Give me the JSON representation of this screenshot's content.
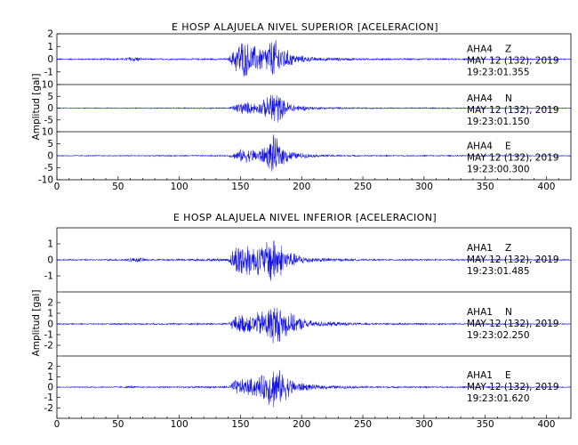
{
  "chart_data": [
    {
      "type": "line",
      "title": "E HOSP ALAJUELA NIVEL SUPERIOR [ACELERACION]",
      "ylabel": "Amplitud [gal]",
      "xlim": [
        0,
        420
      ],
      "xticks": [
        0,
        50,
        100,
        150,
        200,
        250,
        300,
        350,
        400
      ],
      "panels": [
        {
          "station": "AHA4",
          "component": "Z",
          "date": "MAY 12 (132), 2019",
          "time": "19:23:01.355",
          "ylim": [
            -2,
            2
          ],
          "yticks": [
            2,
            1,
            0,
            -1
          ],
          "envelope": [
            [
              0,
              0.05
            ],
            [
              55,
              0.08
            ],
            [
              60,
              0.25
            ],
            [
              65,
              0.25
            ],
            [
              70,
              0.06
            ],
            [
              140,
              0.08
            ],
            [
              145,
              0.9
            ],
            [
              150,
              1.8
            ],
            [
              160,
              1.2
            ],
            [
              170,
              1.1
            ],
            [
              177,
              1.9
            ],
            [
              185,
              1.0
            ],
            [
              195,
              0.4
            ],
            [
              210,
              0.18
            ],
            [
              250,
              0.08
            ],
            [
              420,
              0.05
            ]
          ]
        },
        {
          "station": "AHA4",
          "component": "N",
          "date": "MAY 12 (132), 2019",
          "time": "19:23:01.150",
          "ylim": [
            -10,
            10
          ],
          "yticks": [
            10,
            5,
            0,
            -5
          ],
          "envelope": [
            [
              0,
              0.2
            ],
            [
              140,
              0.3
            ],
            [
              145,
              1.5
            ],
            [
              150,
              3
            ],
            [
              165,
              2.5
            ],
            [
              172,
              5
            ],
            [
              177,
              10
            ],
            [
              185,
              4
            ],
            [
              195,
              1.5
            ],
            [
              210,
              0.6
            ],
            [
              250,
              0.3
            ],
            [
              420,
              0.2
            ]
          ]
        },
        {
          "station": "AHA4",
          "component": "E",
          "date": "MAY 12 (132), 2019",
          "time": "19:23:00.300",
          "ylim": [
            -10,
            10
          ],
          "yticks": [
            10,
            5,
            0,
            -5,
            -10
          ],
          "envelope": [
            [
              0,
              0.2
            ],
            [
              140,
              0.3
            ],
            [
              145,
              1.5
            ],
            [
              150,
              3
            ],
            [
              165,
              3
            ],
            [
              172,
              5
            ],
            [
              177,
              9.5
            ],
            [
              185,
              4
            ],
            [
              195,
              1.5
            ],
            [
              210,
              0.6
            ],
            [
              250,
              0.3
            ],
            [
              420,
              0.2
            ]
          ]
        }
      ]
    },
    {
      "type": "line",
      "title": "E HOSP ALAJUELA NIVEL INFERIOR [ACELERACION]",
      "ylabel": "Amplitud [gal]",
      "xlim": [
        0,
        420
      ],
      "xticks": [
        0,
        50,
        100,
        150,
        200,
        250,
        300,
        350,
        400
      ],
      "panels": [
        {
          "station": "AHA1",
          "component": "Z",
          "date": "MAY 12 (132), 2019",
          "time": "19:23:01.485",
          "ylim": [
            -2,
            2
          ],
          "yticks": [
            1,
            0,
            -1
          ],
          "envelope": [
            [
              0,
              0.04
            ],
            [
              55,
              0.06
            ],
            [
              60,
              0.15
            ],
            [
              70,
              0.15
            ],
            [
              75,
              0.05
            ],
            [
              140,
              0.1
            ],
            [
              145,
              0.9
            ],
            [
              150,
              1.4
            ],
            [
              160,
              1.0
            ],
            [
              170,
              1.1
            ],
            [
              176,
              1.9
            ],
            [
              185,
              0.9
            ],
            [
              195,
              0.4
            ],
            [
              210,
              0.15
            ],
            [
              250,
              0.06
            ],
            [
              420,
              0.04
            ]
          ]
        },
        {
          "station": "AHA1",
          "component": "N",
          "date": "MAY 12 (132), 2019",
          "time": "19:23:02.250",
          "ylim": [
            -3,
            3
          ],
          "yticks": [
            2,
            1,
            0,
            -1,
            -2
          ],
          "envelope": [
            [
              0,
              0.05
            ],
            [
              140,
              0.1
            ],
            [
              145,
              0.8
            ],
            [
              150,
              1.0
            ],
            [
              160,
              1.0
            ],
            [
              170,
              1.5
            ],
            [
              176,
              2.3
            ],
            [
              185,
              1.6
            ],
            [
              195,
              0.8
            ],
            [
              210,
              0.3
            ],
            [
              250,
              0.1
            ],
            [
              420,
              0.05
            ]
          ]
        },
        {
          "station": "AHA1",
          "component": "E",
          "date": "MAY 12 (132), 2019",
          "time": "19:23:01.620",
          "ylim": [
            -3,
            3
          ],
          "yticks": [
            2,
            1,
            0,
            -1,
            -2
          ],
          "envelope": [
            [
              0,
              0.05
            ],
            [
              55,
              0.07
            ],
            [
              60,
              0.15
            ],
            [
              65,
              0.07
            ],
            [
              140,
              0.1
            ],
            [
              145,
              0.8
            ],
            [
              155,
              0.9
            ],
            [
              165,
              1.1
            ],
            [
              172,
              1.6
            ],
            [
              176,
              2.4
            ],
            [
              185,
              1.5
            ],
            [
              195,
              0.6
            ],
            [
              210,
              0.25
            ],
            [
              250,
              0.1
            ],
            [
              420,
              0.05
            ]
          ]
        }
      ]
    }
  ]
}
